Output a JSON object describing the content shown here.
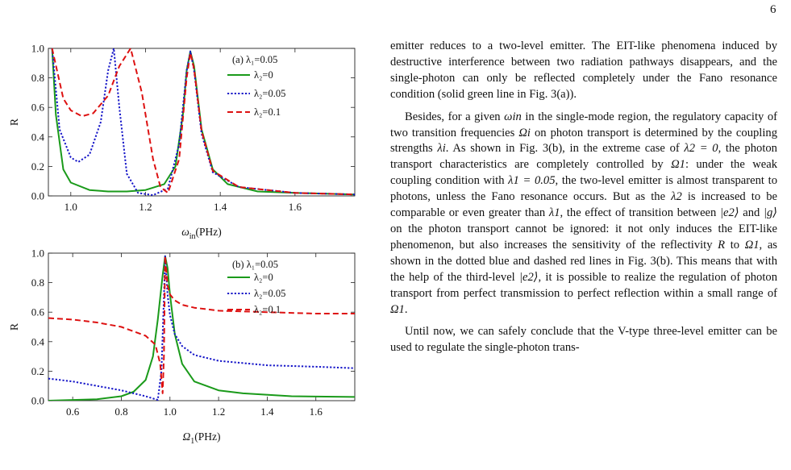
{
  "page_number": "6",
  "figure": {
    "panels": [
      {
        "legend_title": "(a) λ₁=0.05",
        "xlabel": "ω",
        "xlabel_sub": "in",
        "xlabel_unit": "(PHz)",
        "ylabel": "R",
        "xticks": [
          "1.0",
          "1.2",
          "1.4",
          "1.6"
        ],
        "yticks": [
          "0.0",
          "0.2",
          "0.4",
          "0.6",
          "0.8",
          "1.0"
        ],
        "legend": [
          {
            "label": "λ₂=0",
            "color": "#1a9a1a",
            "dash": "solid"
          },
          {
            "label": "λ₂=0.05",
            "color": "#1515c8",
            "dash": "dotted"
          },
          {
            "label": "λ₂=0.1",
            "color": "#dd1111",
            "dash": "dashed"
          }
        ]
      },
      {
        "legend_title": "(b) λ₁=0.05",
        "xlabel": "Ω",
        "xlabel_sub": "1",
        "xlabel_unit": "(PHz)",
        "ylabel": "R",
        "xticks": [
          "0.6",
          "0.8",
          "1.0",
          "1.2",
          "1.4",
          "1.6"
        ],
        "yticks": [
          "0.0",
          "0.2",
          "0.4",
          "0.6",
          "0.8",
          "1.0"
        ],
        "legend": [
          {
            "label": "λ₂=0",
            "color": "#1a9a1a",
            "dash": "solid"
          },
          {
            "label": "λ₂=0.05",
            "color": "#1515c8",
            "dash": "dotted"
          },
          {
            "label": "λ₂=0.1",
            "color": "#dd1111",
            "dash": "dashed"
          }
        ]
      }
    ]
  },
  "chart_data": [
    {
      "type": "line",
      "title": "(a) λ₁=0.05",
      "xlabel": "ωin(PHz)",
      "ylabel": "R",
      "xlim": [
        0.94,
        1.76
      ],
      "ylim": [
        0,
        1
      ],
      "grid": false,
      "legend_position": "top-right",
      "series": [
        {
          "name": "λ₂=0",
          "x": [
            0.95,
            0.96,
            0.98,
            1.0,
            1.05,
            1.1,
            1.15,
            1.2,
            1.25,
            1.28,
            1.3,
            1.31,
            1.32,
            1.33,
            1.35,
            1.38,
            1.42,
            1.5,
            1.6,
            1.76
          ],
          "y": [
            1.0,
            0.55,
            0.18,
            0.09,
            0.04,
            0.03,
            0.03,
            0.04,
            0.08,
            0.2,
            0.55,
            0.85,
            0.98,
            0.88,
            0.45,
            0.18,
            0.08,
            0.03,
            0.02,
            0.01
          ]
        },
        {
          "name": "λ₂=0.05",
          "x": [
            0.95,
            0.97,
            1.0,
            1.02,
            1.05,
            1.08,
            1.1,
            1.115,
            1.13,
            1.15,
            1.18,
            1.22,
            1.26,
            1.29,
            1.31,
            1.32,
            1.33,
            1.35,
            1.38,
            1.45,
            1.6,
            1.76
          ],
          "y": [
            1.0,
            0.45,
            0.26,
            0.23,
            0.28,
            0.5,
            0.85,
            1.0,
            0.6,
            0.15,
            0.02,
            0.005,
            0.05,
            0.35,
            0.85,
            0.98,
            0.85,
            0.42,
            0.16,
            0.06,
            0.02,
            0.01
          ]
        },
        {
          "name": "λ₂=0.1",
          "x": [
            0.95,
            0.98,
            1.0,
            1.03,
            1.06,
            1.1,
            1.13,
            1.16,
            1.19,
            1.22,
            1.24,
            1.26,
            1.29,
            1.31,
            1.32,
            1.33,
            1.35,
            1.38,
            1.45,
            1.6,
            1.76
          ],
          "y": [
            1.0,
            0.66,
            0.58,
            0.54,
            0.56,
            0.68,
            0.88,
            1.0,
            0.7,
            0.25,
            0.06,
            0.02,
            0.25,
            0.8,
            0.97,
            0.86,
            0.44,
            0.17,
            0.06,
            0.02,
            0.01
          ]
        }
      ]
    },
    {
      "type": "line",
      "title": "(b) λ₁=0.05",
      "xlabel": "Ω1(PHz)",
      "ylabel": "R",
      "xlim": [
        0.5,
        1.76
      ],
      "ylim": [
        0,
        1
      ],
      "grid": false,
      "legend_position": "top-right",
      "series": [
        {
          "name": "λ₂=0",
          "x": [
            0.5,
            0.6,
            0.7,
            0.8,
            0.85,
            0.9,
            0.93,
            0.95,
            0.97,
            0.98,
            0.99,
            1.0,
            1.02,
            1.05,
            1.1,
            1.2,
            1.3,
            1.5,
            1.76
          ],
          "y": [
            0.0,
            0.005,
            0.01,
            0.03,
            0.06,
            0.14,
            0.3,
            0.55,
            0.85,
            0.98,
            0.9,
            0.72,
            0.45,
            0.25,
            0.13,
            0.07,
            0.05,
            0.03,
            0.025
          ]
        },
        {
          "name": "λ₂=0.05",
          "x": [
            0.5,
            0.6,
            0.7,
            0.8,
            0.9,
            0.95,
            0.965,
            0.975,
            0.98,
            0.985,
            0.99,
            1.0,
            1.02,
            1.05,
            1.1,
            1.2,
            1.4,
            1.6,
            1.76
          ],
          "y": [
            0.15,
            0.13,
            0.1,
            0.07,
            0.03,
            0.005,
            0.2,
            0.7,
            0.98,
            0.85,
            0.72,
            0.58,
            0.45,
            0.37,
            0.31,
            0.27,
            0.24,
            0.23,
            0.22
          ]
        },
        {
          "name": "λ₂=0.1",
          "x": [
            0.5,
            0.6,
            0.7,
            0.8,
            0.9,
            0.94,
            0.96,
            0.97,
            0.975,
            0.98,
            0.985,
            0.99,
            1.0,
            1.02,
            1.05,
            1.1,
            1.2,
            1.4,
            1.6,
            1.76
          ],
          "y": [
            0.56,
            0.55,
            0.53,
            0.5,
            0.44,
            0.38,
            0.25,
            0.05,
            0.3,
            0.98,
            0.88,
            0.78,
            0.72,
            0.68,
            0.65,
            0.63,
            0.61,
            0.6,
            0.59,
            0.59
          ]
        }
      ]
    }
  ],
  "text": {
    "p1": "emitter reduces to a two-level emitter. The EIT-like phenomena induced by destructive interference between two radiation pathways disappears, and the single-photon can only be reflected completely under the Fano resonance condition (solid green line in Fig. 3(a)).",
    "p2a": "Besides, for a given ",
    "p2b": " in the single-mode region, the regulatory capacity of two transition frequencies ",
    "p2c": " on photon transport is determined by the coupling strengths ",
    "p2d": ". As shown in Fig. 3(b), in the extreme case of ",
    "p2e": ", the photon transport characteristics are completely controlled by ",
    "p2f": ": under the weak coupling condition with ",
    "p2g": ", the two-level emitter is almost transparent to photons, unless the Fano resonance occurs. But as the ",
    "p2h": " is increased to be comparable or even greater than ",
    "p2i": ", the effect of transition between ",
    "p2j": " and ",
    "p2k": " on the photon transport cannot be ignored: it not only induces the EIT-like phenomenon, but also increases the sensitivity of the reflectivity ",
    "p2l": " to ",
    "p2m": ", as shown in the dotted blue and dashed red lines in Fig. 3(b). This means that with the help of the third-level ",
    "p2n": ", it is possible to realize the regulation of photon transport from perfect transmission to perfect reflection within a small range of ",
    "p2o": ".",
    "p3": "Until now, we can safely conclude that the V-type three-level emitter can be used to regulate the single-photon trans-",
    "m_omega_in": "ωin",
    "m_Omega_i": "Ωi",
    "m_lambda_i": "λi",
    "m_lambda2_0": "λ2 = 0",
    "m_Omega_1": "Ω1",
    "m_lambda1_005": "λ1 = 0.05",
    "m_lambda_2": "λ2",
    "m_lambda_1": "λ1",
    "m_e2": "|e2⟩",
    "m_g": "|g⟩",
    "m_R": "R"
  }
}
